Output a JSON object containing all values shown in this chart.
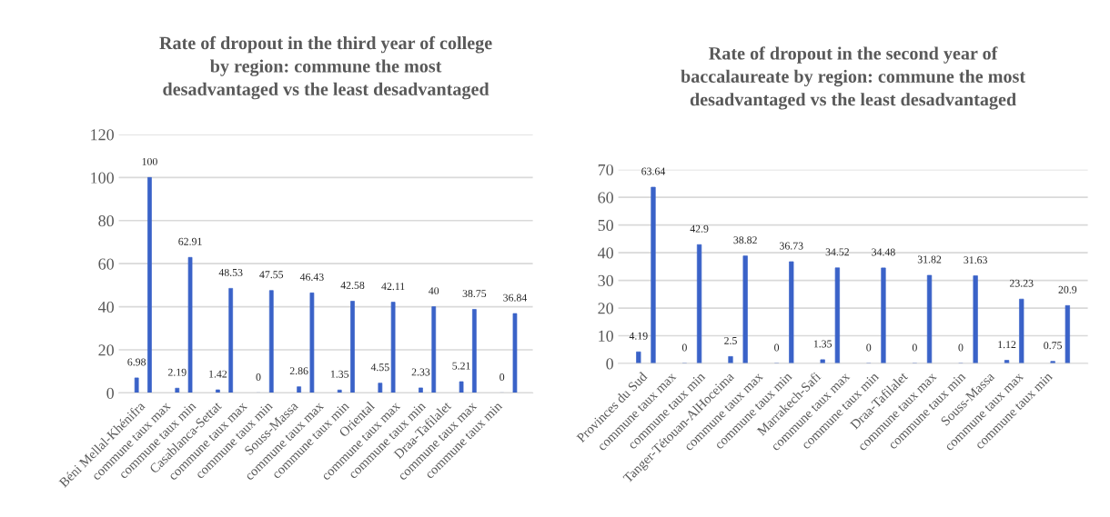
{
  "chart_data": [
    {
      "type": "bar",
      "title": "Rate of dropout in the third year of college\nby region: commune the most\ndesadvantaged vs the least desadvantaged",
      "categories": [
        null,
        null,
        null,
        null,
        null,
        null,
        null,
        null,
        null,
        null
      ],
      "series": [
        {
          "color": "#3a62c8",
          "values": [
            6.98,
            2.19,
            1.42,
            0,
            2.86,
            1.35,
            4.55,
            2.33,
            5.21,
            0
          ]
        },
        {
          "color": "#3a62c8",
          "values": [
            100,
            62.91,
            48.53,
            47.55,
            46.43,
            42.58,
            42.11,
            40,
            38.75,
            36.84
          ]
        }
      ],
      "annotations": [
        "Béni Mellal-Khénifra",
        "commune taux max",
        "commune taux min",
        "Casablanca-Settat",
        "commune taux max",
        "commune taux min",
        "Souss-Massa",
        "commune taux max",
        "commune taux min",
        "Oriental",
        "commune taux max",
        "commune taux min",
        "Draa-Tafilalet",
        "commune taux max",
        "commune taux min"
      ],
      "ylim": [
        0,
        120
      ],
      "yticks": [
        0,
        20,
        40,
        60,
        80,
        100,
        120
      ],
      "grid": "y",
      "data_labels": true,
      "legend": false
    },
    {
      "type": "bar",
      "title": "Rate of dropout in the second year of\nbaccalaureate by region: commune the most\ndesadvantaged vs the least desadvantaged",
      "categories": [
        null,
        null,
        null,
        null,
        null,
        null,
        null,
        null,
        null,
        null
      ],
      "series": [
        {
          "color": "#3a62c8",
          "values": [
            4.19,
            0,
            2.5,
            0,
            1.35,
            0,
            0,
            0,
            1.12,
            0.75
          ]
        },
        {
          "color": "#3a62c8",
          "values": [
            63.64,
            42.9,
            38.82,
            36.73,
            34.52,
            34.48,
            31.82,
            31.63,
            23.23,
            20.9
          ]
        }
      ],
      "annotations": [
        "Provinces du Sud",
        "commune taux max",
        "commune taux min",
        "Tanger-Tétouan-AlHoceima",
        "commune taux max",
        "commune taux min",
        "Marrakech-Safi",
        "commune taux max",
        "commune taux min",
        "Draa-Tafilalet",
        "commune taux max",
        "commune taux min",
        "Souss-Massa",
        "commune taux max",
        "commune taux min"
      ],
      "ylim": [
        0,
        70
      ],
      "yticks": [
        0,
        10,
        20,
        30,
        40,
        50,
        60,
        70
      ],
      "grid": "y",
      "data_labels": true,
      "legend": false
    }
  ]
}
